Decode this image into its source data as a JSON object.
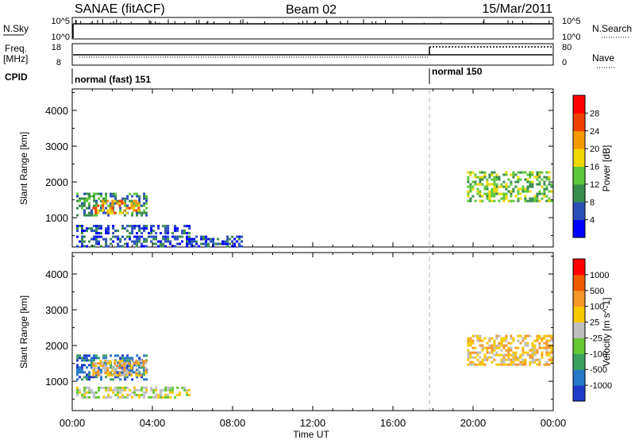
{
  "header": {
    "left": "SANAE (fitACF)",
    "center": "Beam 02",
    "right": "15/Mar/2011"
  },
  "params": {
    "nsky_label": "N.Sky",
    "nsky_ticks": [
      "10^5",
      "10^0"
    ],
    "nsearch_label": "N.Search",
    "nsearch_ticks": [
      "10^5",
      "10^0"
    ],
    "freq_label": "Freq.",
    "freq_unit": "[MHz]",
    "freq_ticks": [
      "18",
      "8"
    ],
    "nave_label": "Nave",
    "nave_ticks": [
      "80",
      "0"
    ],
    "cpid_label": "CPID",
    "cpid_segments": [
      {
        "label": "normal (fast) 151",
        "start_hour": 0
      },
      {
        "label": "normal 150",
        "start_hour": 18
      }
    ]
  },
  "chart_data": [
    {
      "type": "heatmap",
      "name": "power",
      "ylabel": "Slant Range [km]",
      "xlabel": "",
      "xlim": [
        0,
        24
      ],
      "ylim": [
        180,
        4600
      ],
      "yticks": [
        "1000",
        "2000",
        "3000",
        "4000"
      ],
      "colorbar": {
        "label": "Power [dB]",
        "ticks": [
          "4",
          "8",
          "12",
          "16",
          "20",
          "24",
          "28"
        ],
        "colors": [
          "#0000ff",
          "#2a50b8",
          "#3a8c4e",
          "#5cc83a",
          "#f0d800",
          "#f59a00",
          "#ee4000",
          "#ff0000"
        ]
      },
      "regions": [
        {
          "x": [
            0.2,
            3.7
          ],
          "y": [
            1050,
            1700
          ],
          "level": 2
        },
        {
          "x": [
            1.0,
            3.3
          ],
          "y": [
            1150,
            1500
          ],
          "level": 5
        },
        {
          "x": [
            0.2,
            5.9
          ],
          "y": [
            580,
            800
          ],
          "level": 1
        },
        {
          "x": [
            19.7,
            23.9
          ],
          "y": [
            1500,
            2300
          ],
          "level": 3
        },
        {
          "x": [
            0.2,
            8.5
          ],
          "y": [
            180,
            500
          ],
          "level": 1
        }
      ]
    },
    {
      "type": "heatmap",
      "name": "velocity",
      "ylabel": "Slant Range [km]",
      "xlabel": "Time UT",
      "xlim": [
        0,
        24
      ],
      "ylim": [
        180,
        4600
      ],
      "yticks": [
        "1000",
        "2000",
        "3000",
        "4000"
      ],
      "xticks": [
        "00:00",
        "04:00",
        "08:00",
        "12:00",
        "16:00",
        "20:00",
        "00:00"
      ],
      "colorbar": {
        "label": "Velocity [m s^-1]",
        "ticks": [
          "1000",
          "500",
          "100",
          "25",
          "-25",
          "-100",
          "-500",
          "-1000"
        ],
        "colors": [
          "#1e3cc8",
          "#2878c8",
          "#3ca060",
          "#64c832",
          "#bebebe",
          "#f5c800",
          "#f59628",
          "#f05a00",
          "#ff0000"
        ]
      },
      "regions": [
        {
          "x": [
            0.2,
            3.7
          ],
          "y": [
            1050,
            1750
          ],
          "level": 1
        },
        {
          "x": [
            1.0,
            3.7
          ],
          "y": [
            1150,
            1600
          ],
          "level": 5
        },
        {
          "x": [
            0.2,
            5.9
          ],
          "y": [
            580,
            850
          ],
          "level": 4
        },
        {
          "x": [
            19.7,
            23.9
          ],
          "y": [
            1500,
            2300
          ],
          "level": 5
        }
      ]
    }
  ]
}
